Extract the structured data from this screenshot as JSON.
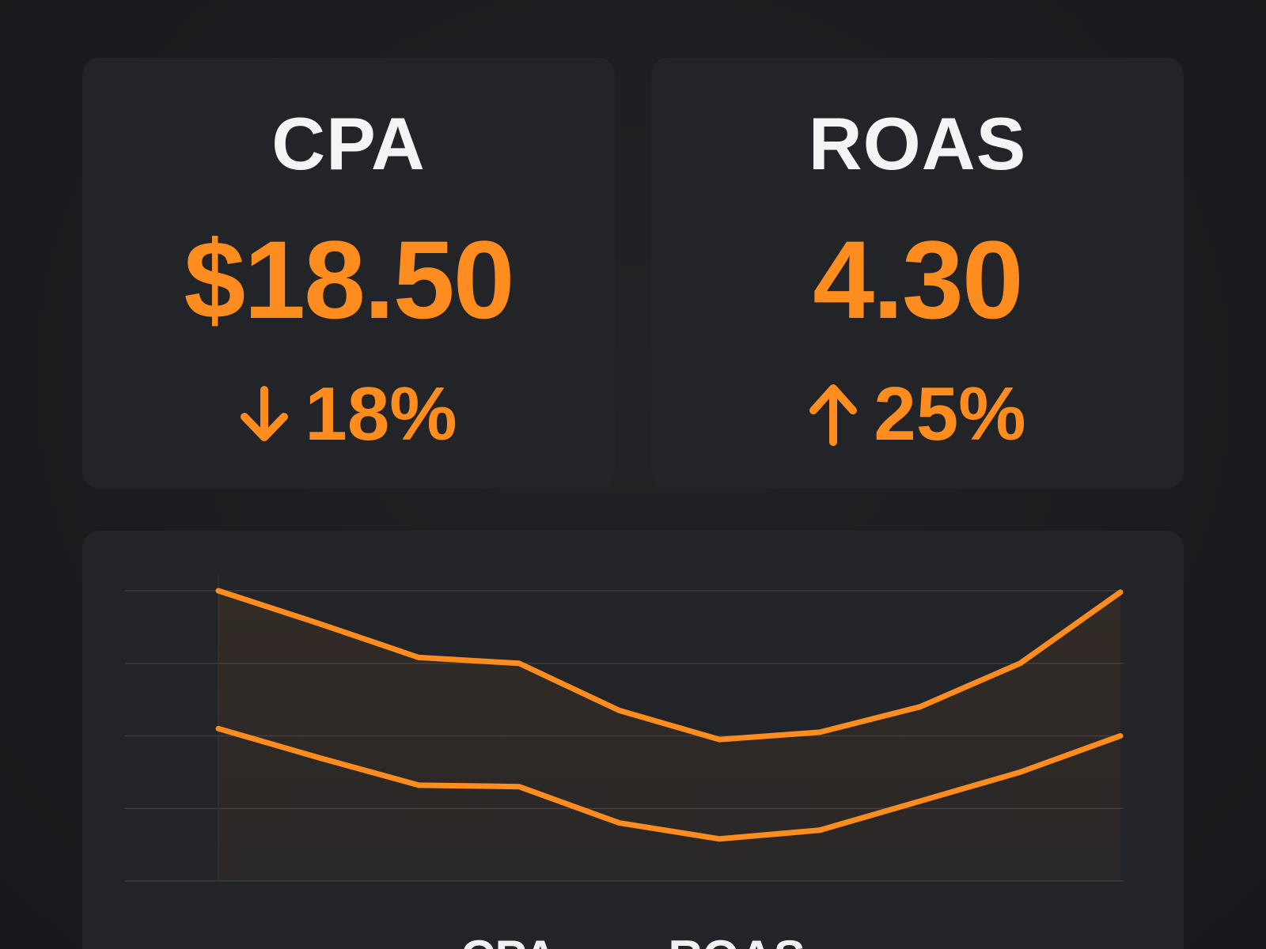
{
  "kpis": {
    "cpa": {
      "label": "CPA",
      "value": "$18.50",
      "change": "18%",
      "direction": "down-arrow-icon"
    },
    "roas": {
      "label": "ROAS",
      "value": "4.30",
      "change": "25%",
      "direction": "up-arrow-icon"
    }
  },
  "colors": {
    "accent": "#ff8c1f",
    "card": "#232427",
    "background": "#1c1d20",
    "text": "#f4f4f4",
    "grid": "#3a3b3f"
  },
  "chart_data": {
    "type": "line",
    "x": [
      0,
      1,
      2,
      3,
      4,
      5,
      6,
      7,
      8,
      9
    ],
    "ylim": [
      0,
      4
    ],
    "grid": true,
    "legend_position": "bottom",
    "series": [
      {
        "name": "CPA",
        "values": [
          4.0,
          3.55,
          3.08,
          3.0,
          2.35,
          1.95,
          2.05,
          2.4,
          3.0,
          3.98
        ]
      },
      {
        "name": "ROAS",
        "values": [
          2.1,
          1.7,
          1.32,
          1.3,
          0.8,
          0.58,
          0.7,
          1.1,
          1.5,
          2.0
        ]
      }
    ]
  },
  "legend": {
    "items": [
      "CPA",
      "ROAS"
    ]
  }
}
